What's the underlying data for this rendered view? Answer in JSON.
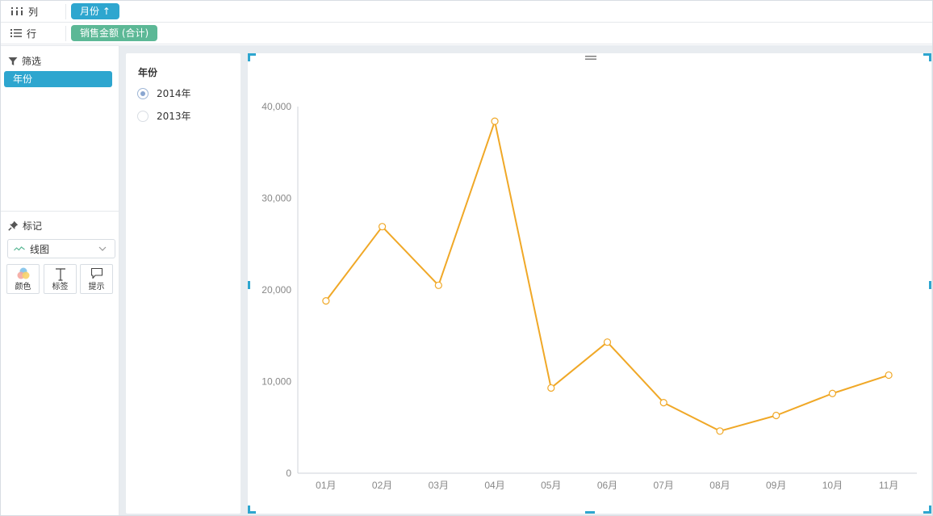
{
  "shelves": {
    "columns": {
      "label": "列",
      "pill": "月份 ↑"
    },
    "rows": {
      "label": "行",
      "pill": "销售金额 (合计)"
    }
  },
  "filter": {
    "title": "筛选",
    "items": [
      "年份"
    ]
  },
  "marks": {
    "title": "标记",
    "type_select": "线图",
    "buttons": [
      {
        "label": "颜色",
        "icon": "color-icon"
      },
      {
        "label": "标签",
        "icon": "text-label-icon"
      },
      {
        "label": "提示",
        "icon": "tooltip-icon"
      }
    ]
  },
  "legend": {
    "title": "年份",
    "options": [
      {
        "label": "2014年",
        "selected": true
      },
      {
        "label": "2013年",
        "selected": false
      }
    ]
  },
  "colors": {
    "accent": "#2ea6cf",
    "row_pill": "#5cb896",
    "series": "#f0a827"
  },
  "chart_data": {
    "type": "line",
    "categories": [
      "01月",
      "02月",
      "03月",
      "04月",
      "05月",
      "06月",
      "07月",
      "08月",
      "09月",
      "10月",
      "11月"
    ],
    "series": [
      {
        "values": [
          18800,
          26900,
          20500,
          38400,
          9300,
          14300,
          7700,
          4600,
          6300,
          8700,
          10700
        ]
      }
    ],
    "ylim": [
      0,
      40000
    ],
    "yticks": [
      "0",
      "10,000",
      "20,000",
      "30,000",
      "40,000"
    ],
    "grid": false,
    "xlabel": "",
    "ylabel": "",
    "title": ""
  }
}
